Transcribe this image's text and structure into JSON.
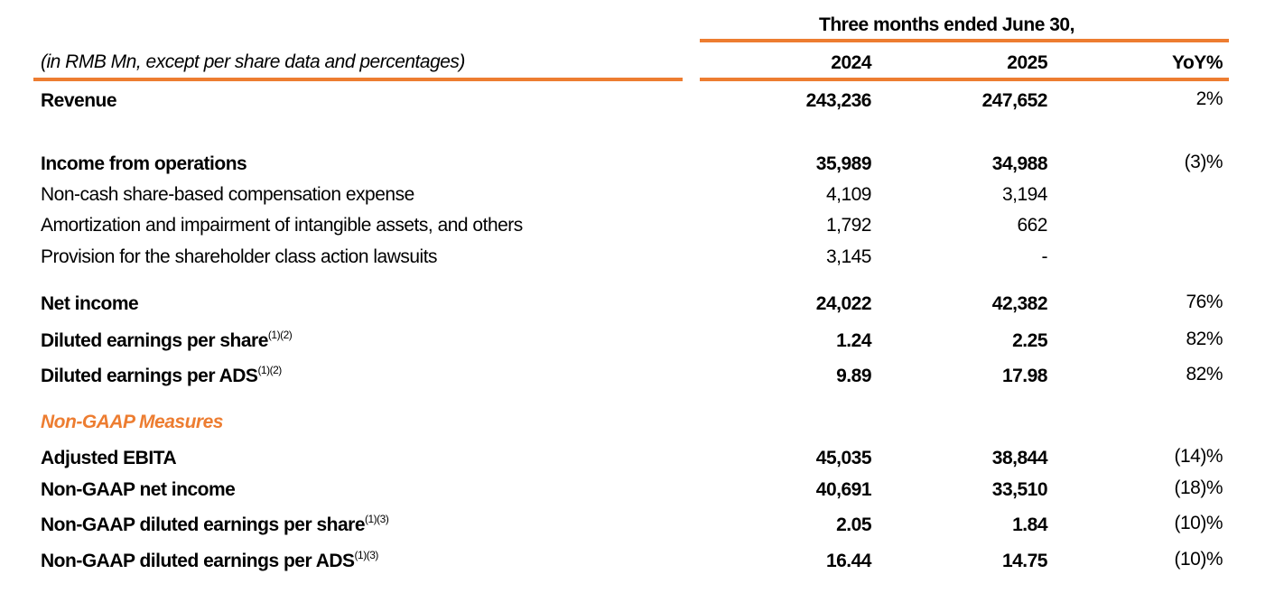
{
  "header": {
    "period": "Three months ended June 30,",
    "units_note": "(in RMB Mn, except per share data and percentages)",
    "columns": [
      "2024",
      "2025",
      "YoY%"
    ]
  },
  "accent_color": "#ED7D31",
  "rows": [
    {
      "label": "Revenue",
      "sup": "",
      "v2024": "243,236",
      "v2025": "247,652",
      "yoy": "2%",
      "bold": true
    },
    {
      "label": "Income from operations",
      "sup": "",
      "v2024": "35,989",
      "v2025": "34,988",
      "yoy": "(3)%",
      "bold": true
    },
    {
      "label": "Non-cash share-based compensation expense",
      "sup": "",
      "v2024": "4,109",
      "v2025": "3,194",
      "yoy": "",
      "bold": false
    },
    {
      "label": "Amortization and impairment of intangible assets, and others",
      "sup": "",
      "v2024": "1,792",
      "v2025": "662",
      "yoy": "",
      "bold": false
    },
    {
      "label": "Provision for the shareholder class action lawsuits",
      "sup": "",
      "v2024": "3,145",
      "v2025": "-",
      "yoy": "",
      "bold": false
    },
    {
      "label": "Net income",
      "sup": "",
      "v2024": "24,022",
      "v2025": "42,382",
      "yoy": "76%",
      "bold": true
    },
    {
      "label": "Diluted earnings per share",
      "sup": "(1)(2)",
      "v2024": "1.24",
      "v2025": "2.25",
      "yoy": "82%",
      "bold": true
    },
    {
      "label": "Diluted earnings per ADS",
      "sup": "(1)(2)",
      "v2024": "9.89",
      "v2025": "17.98",
      "yoy": "82%",
      "bold": true
    },
    {
      "label": "Non-GAAP Measures",
      "sup": "",
      "v2024": "",
      "v2025": "",
      "yoy": "",
      "bold": true,
      "section": true
    },
    {
      "label": "Adjusted EBITA",
      "sup": "",
      "v2024": "45,035",
      "v2025": "38,844",
      "yoy": "(14)%",
      "bold": true
    },
    {
      "label": "Non-GAAP net income",
      "sup": "",
      "v2024": "40,691",
      "v2025": "33,510",
      "yoy": "(18)%",
      "bold": true
    },
    {
      "label": "Non-GAAP diluted earnings per share",
      "sup": "(1)(3)",
      "v2024": "2.05",
      "v2025": "1.84",
      "yoy": "(10)%",
      "bold": true
    },
    {
      "label": "Non-GAAP diluted earnings per ADS",
      "sup": "(1)(3)",
      "v2024": "16.44",
      "v2025": "14.75",
      "yoy": "(10)%",
      "bold": true
    }
  ]
}
